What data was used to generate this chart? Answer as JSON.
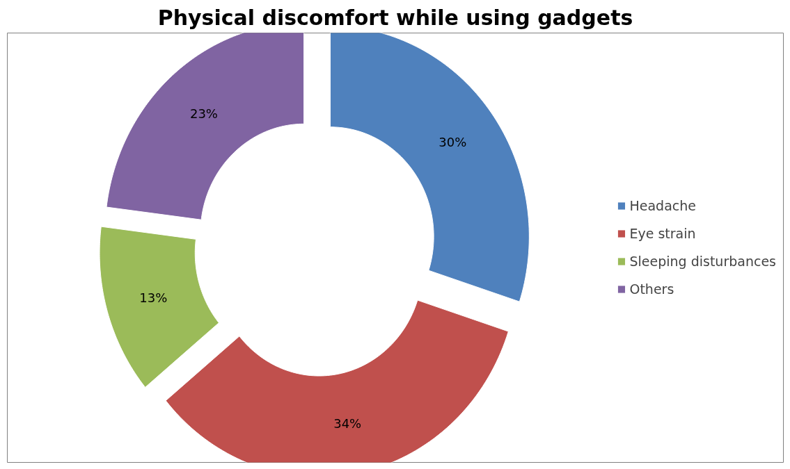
{
  "chart_data": {
    "type": "donut",
    "title": "Physical discomfort while using gadgets",
    "categories": [
      "Headache",
      "Eye strain",
      "Sleeping disturbances",
      "Others"
    ],
    "values": [
      30,
      34,
      13,
      23
    ],
    "colors": [
      "#4f81bd",
      "#c0504d",
      "#9bbb59",
      "#8064a2"
    ],
    "value_labels": [
      "30%",
      "34%",
      "13%",
      "23%"
    ],
    "legend": "right"
  }
}
